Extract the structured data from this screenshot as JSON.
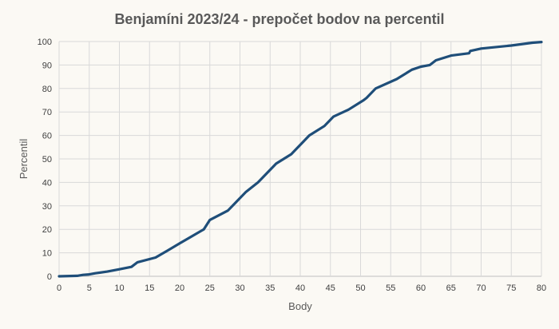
{
  "chart_data": {
    "type": "line",
    "title": "Benjamíni 2023/24 - prepočet bodov na percentil",
    "xlabel": "Body",
    "ylabel": "Percentil",
    "xlim": [
      0,
      80
    ],
    "ylim": [
      0,
      100
    ],
    "xticks": [
      0,
      5,
      10,
      15,
      20,
      25,
      30,
      35,
      40,
      45,
      50,
      55,
      60,
      65,
      70,
      75,
      80
    ],
    "yticks": [
      0,
      10,
      20,
      30,
      40,
      50,
      60,
      70,
      80,
      90,
      100
    ],
    "grid": true,
    "legend": "none",
    "series": [
      {
        "color": "#1f4e79",
        "points": [
          [
            0,
            0
          ],
          [
            3,
            0.2
          ],
          [
            4,
            0.6
          ],
          [
            5,
            0.8
          ],
          [
            6,
            1.3
          ],
          [
            8,
            2
          ],
          [
            10,
            3
          ],
          [
            12,
            4
          ],
          [
            13,
            6
          ],
          [
            16,
            8
          ],
          [
            18,
            11
          ],
          [
            20,
            14
          ],
          [
            22,
            17
          ],
          [
            24,
            20
          ],
          [
            25,
            24
          ],
          [
            28,
            28
          ],
          [
            31,
            36
          ],
          [
            33,
            40
          ],
          [
            36,
            48
          ],
          [
            38.5,
            52
          ],
          [
            40,
            56
          ],
          [
            41.5,
            60
          ],
          [
            44,
            64
          ],
          [
            45.5,
            68
          ],
          [
            48,
            71
          ],
          [
            50.5,
            75
          ],
          [
            51,
            76
          ],
          [
            52.5,
            80
          ],
          [
            56,
            84
          ],
          [
            58.5,
            88
          ],
          [
            60,
            89.3
          ],
          [
            61.5,
            90
          ],
          [
            62.5,
            92
          ],
          [
            65,
            94
          ],
          [
            68,
            95
          ],
          [
            68.2,
            96
          ],
          [
            70,
            97
          ],
          [
            75,
            98.3
          ],
          [
            78.5,
            99.5
          ],
          [
            80,
            99.8
          ]
        ]
      }
    ]
  }
}
